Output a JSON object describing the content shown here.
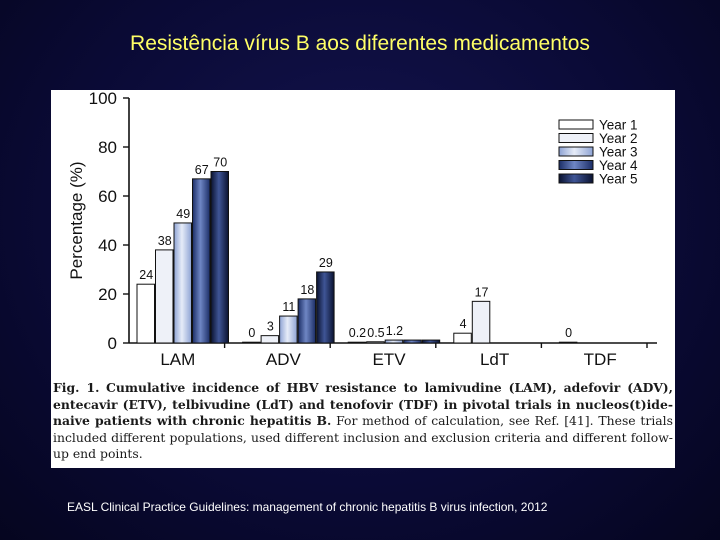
{
  "slide": {
    "title": "Resistência vírus B aos diferentes medicamentos",
    "source": "EASL Clinical Practice Guidelines: management of chronic hepatitis B virus infection, 2012"
  },
  "caption": {
    "label": "Fig. 1.",
    "bold_text": "Cumulative incidence of HBV resistance to lamivudine (LAM), adefovir (ADV), entecavir (ETV), telbivudine (LdT) and tenofovir (TDF) in pivotal trials in nucleos(t)ide-naive patients with chronic hepatitis B.",
    "text": "For method of calculation, see Ref. [41]. These trials included different populations, used different inclusion and exclusion criteria and different follow-up end points."
  },
  "chart_data": {
    "type": "bar",
    "title": "",
    "xlabel": "",
    "ylabel": "Percentage (%)",
    "ylim": [
      0,
      100
    ],
    "yticks": [
      0,
      20,
      40,
      60,
      80,
      100
    ],
    "grid": false,
    "legend_position": "top-right",
    "categories": [
      "LAM",
      "ADV",
      "ETV",
      "LdT",
      "TDF"
    ],
    "series": [
      {
        "name": "Year 1",
        "values": [
          24,
          0,
          0.2,
          4,
          0
        ],
        "labels": [
          "24",
          "0",
          "0.2",
          "4",
          "0"
        ]
      },
      {
        "name": "Year 2",
        "values": [
          38,
          3,
          0.5,
          17,
          null
        ],
        "labels": [
          "38",
          "3",
          "0.5",
          "17",
          ""
        ]
      },
      {
        "name": "Year 3",
        "values": [
          49,
          11,
          1.2,
          null,
          null
        ],
        "labels": [
          "49",
          "11",
          "1.2",
          "",
          ""
        ]
      },
      {
        "name": "Year 4",
        "values": [
          67,
          18,
          1.2,
          null,
          null
        ],
        "labels": [
          "67",
          "18",
          "",
          "",
          ""
        ]
      },
      {
        "name": "Year 5",
        "values": [
          70,
          29,
          1.2,
          null,
          null
        ],
        "labels": [
          "70",
          "29",
          "",
          "",
          ""
        ]
      }
    ],
    "series_styles": [
      {
        "fill": "#ffffff",
        "stroke": "#111111",
        "gradient": false
      },
      {
        "fill": "#eef1f8",
        "stroke": "#111111",
        "gradient": false
      },
      {
        "fill": "#b8c6e6",
        "stroke": "#111111",
        "gradient": "light"
      },
      {
        "fill": "#2e4a8c",
        "stroke": "#111111",
        "gradient": "mid"
      },
      {
        "fill": "#14224a",
        "stroke": "#111111",
        "gradient": "dark"
      }
    ]
  }
}
